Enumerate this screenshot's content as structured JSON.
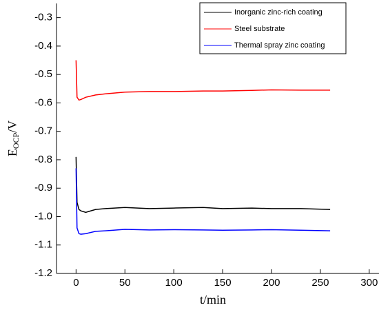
{
  "chart_data": {
    "type": "line",
    "x_label": "t/min",
    "y_label": [
      "E",
      "OCP",
      "/V"
    ],
    "x": [
      0,
      1,
      3,
      5,
      10,
      20,
      30,
      50,
      75,
      100,
      130,
      150,
      180,
      200,
      230,
      260
    ],
    "series": [
      {
        "name": "Inorganic zinc-rich coating",
        "color": "#000000",
        "values": [
          -0.79,
          -0.95,
          -0.975,
          -0.98,
          -0.985,
          -0.975,
          -0.972,
          -0.968,
          -0.972,
          -0.97,
          -0.968,
          -0.972,
          -0.97,
          -0.972,
          -0.972,
          -0.975
        ]
      },
      {
        "name": "Steel substrate",
        "color": "#ff0000",
        "values": [
          -0.45,
          -0.58,
          -0.59,
          -0.588,
          -0.58,
          -0.572,
          -0.568,
          -0.562,
          -0.56,
          -0.56,
          -0.558,
          -0.558,
          -0.556,
          -0.554,
          -0.555,
          -0.555
        ]
      },
      {
        "name": "Thermal spray zinc coating",
        "color": "#0000ff",
        "values": [
          -0.83,
          -1.04,
          -1.06,
          -1.062,
          -1.06,
          -1.052,
          -1.05,
          -1.045,
          -1.047,
          -1.046,
          -1.047,
          -1.048,
          -1.047,
          -1.046,
          -1.048,
          -1.05
        ]
      }
    ],
    "xlim": [
      -20,
      310
    ],
    "xticks": [
      0,
      50,
      100,
      150,
      200,
      250,
      300
    ],
    "ylim": [
      -1.2,
      -0.25
    ],
    "yticks": [
      -0.3,
      -0.4,
      -0.5,
      -0.6,
      -0.7,
      -0.8,
      -0.9,
      {
        "value": -1,
        "label": "-1.0"
      },
      -1.1,
      -1.2
    ]
  }
}
